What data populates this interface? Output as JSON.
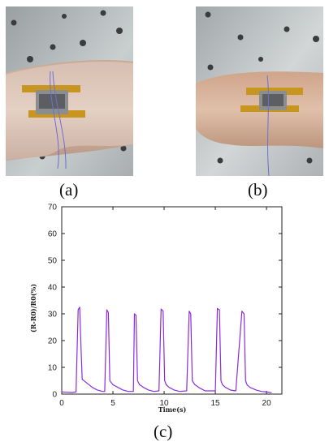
{
  "panels": [
    {
      "label": "(a)",
      "photo": "forearm-sensor-photo"
    },
    {
      "label": "(b)",
      "photo": "wrist-sensor-photo"
    },
    {
      "label": "(c)"
    }
  ],
  "chart_data": {
    "type": "line",
    "title": "",
    "xlabel": "Time(s)",
    "ylabel": "(R-R0)/R0(%)",
    "xlim": [
      0,
      21.5
    ],
    "ylim": [
      0,
      70
    ],
    "xticks": [
      "0",
      "5",
      "10",
      "15",
      "20"
    ],
    "yticks": [
      "0",
      "10",
      "20",
      "30",
      "40",
      "50",
      "60",
      "70"
    ],
    "grid": false,
    "series": [
      {
        "color": "#8a2be2",
        "x": [
          0,
          0.5,
          1.0,
          1.4,
          1.6,
          1.75,
          1.9,
          2.0,
          2.5,
          3.0,
          3.5,
          4.0,
          4.2,
          4.4,
          4.55,
          4.7,
          5.0,
          5.5,
          6.0,
          6.5,
          7.0,
          7.1,
          7.25,
          7.4,
          7.6,
          8.0,
          8.5,
          9.0,
          9.5,
          9.7,
          9.9,
          10.05,
          10.2,
          10.5,
          11.0,
          11.5,
          12.2,
          12.45,
          12.6,
          12.75,
          13.0,
          13.5,
          14.0,
          15.0,
          15.2,
          15.4,
          15.55,
          15.7,
          16.0,
          16.5,
          17.0,
          17.6,
          17.8,
          17.95,
          18.1,
          18.4,
          19.0,
          19.5,
          20.0,
          20.5
        ],
        "y": [
          0.8,
          0.7,
          0.6,
          0.8,
          31.5,
          32.5,
          16,
          5.5,
          4,
          2.5,
          1.5,
          1.0,
          1.0,
          31.5,
          30.5,
          5,
          3.5,
          2.5,
          1.5,
          1.0,
          1.0,
          30,
          29.5,
          5,
          3.5,
          2.5,
          1.5,
          1.0,
          1.2,
          31.8,
          31.0,
          5,
          3.5,
          2.5,
          1.5,
          1.0,
          1.2,
          31.0,
          30.0,
          5,
          3.5,
          2.2,
          1.2,
          1.2,
          32.0,
          31.5,
          5,
          3.5,
          2.5,
          1.5,
          1.2,
          31.0,
          30.0,
          5,
          3.5,
          2.5,
          1.5,
          1.0,
          0.8,
          0.5
        ]
      }
    ]
  }
}
